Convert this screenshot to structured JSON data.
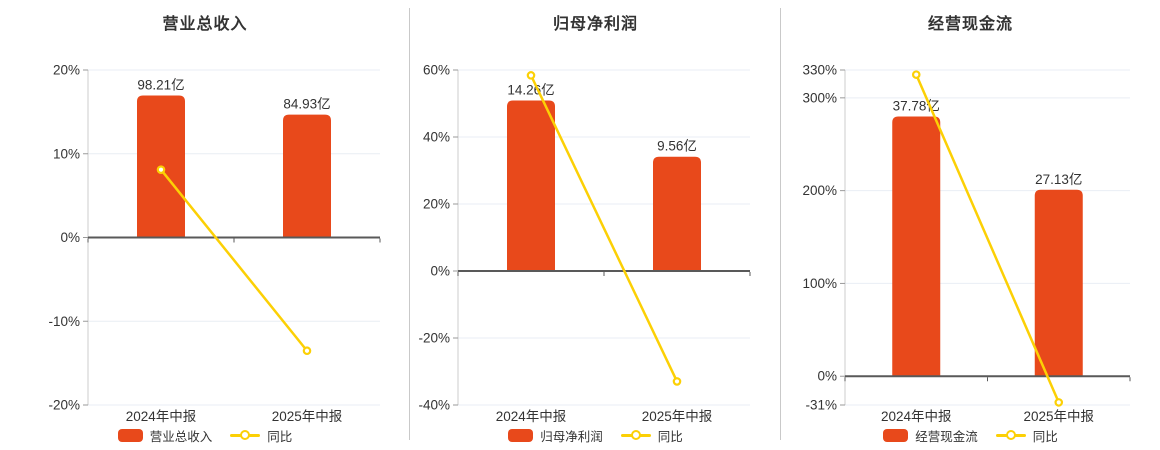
{
  "page": {
    "background": "#ffffff"
  },
  "style": {
    "bar_color": "#e8491b",
    "line_color": "#fcd005",
    "grid_color": "#e9eef4",
    "zero_axis_color": "#595959",
    "y_axis_color": "#cccccc",
    "tick_color": "#9a9a9a",
    "divider_color": "#c9c9c9",
    "text_color": "#333333"
  },
  "chart_data": [
    {
      "type": "bar",
      "title": "营业总收入",
      "categories": [
        "2024年中报",
        "2025年中报"
      ],
      "series": [
        {
          "name": "营业总收入",
          "type": "bar",
          "unit": "亿",
          "values": [
            98.21,
            84.93
          ],
          "labels": [
            "98.21亿",
            "84.93亿"
          ],
          "color": "#e8491b"
        },
        {
          "name": "同比",
          "type": "line",
          "unit": "%",
          "values": [
            8.1,
            -13.52
          ],
          "color": "#fcd005"
        }
      ],
      "y_axis": {
        "min": -20,
        "max": 20,
        "ticks": [
          {
            "v": 20,
            "label": "20%"
          },
          {
            "v": 10,
            "label": "10%"
          },
          {
            "v": 0,
            "label": "0%"
          },
          {
            "v": -10,
            "label": "-10%"
          },
          {
            "v": -20,
            "label": "-20%"
          }
        ]
      },
      "legend_position": "bottom",
      "grid": true
    },
    {
      "type": "bar",
      "title": "归母净利润",
      "categories": [
        "2024年中报",
        "2025年中报"
      ],
      "series": [
        {
          "name": "归母净利润",
          "type": "bar",
          "unit": "亿",
          "values": [
            14.26,
            9.56
          ],
          "labels": [
            "14.26亿",
            "9.56亿"
          ],
          "color": "#e8491b"
        },
        {
          "name": "同比",
          "type": "line",
          "unit": "%",
          "values": [
            58.4,
            -32.96
          ],
          "color": "#fcd005"
        }
      ],
      "y_axis": {
        "min": -40,
        "max": 60,
        "ticks": [
          {
            "v": 60,
            "label": "60%"
          },
          {
            "v": 40,
            "label": "40%"
          },
          {
            "v": 20,
            "label": "20%"
          },
          {
            "v": 0,
            "label": "0%"
          },
          {
            "v": -20,
            "label": "-20%"
          },
          {
            "v": -40,
            "label": "-40%"
          }
        ]
      },
      "legend_position": "bottom",
      "grid": true
    },
    {
      "type": "bar",
      "title": "经营现金流",
      "categories": [
        "2024年中报",
        "2025年中报"
      ],
      "series": [
        {
          "name": "经营现金流",
          "type": "bar",
          "unit": "亿",
          "values": [
            37.78,
            27.13
          ],
          "labels": [
            "37.78亿",
            "27.13亿"
          ],
          "color": "#e8491b"
        },
        {
          "name": "同比",
          "type": "line",
          "unit": "%",
          "values": [
            325,
            -28.19
          ],
          "color": "#fcd005"
        }
      ],
      "y_axis": {
        "min": -31,
        "max": 330,
        "ticks": [
          {
            "v": 330,
            "label": "330%"
          },
          {
            "v": 300,
            "label": "300%"
          },
          {
            "v": 200,
            "label": "200%"
          },
          {
            "v": 100,
            "label": "100%"
          },
          {
            "v": 0,
            "label": "0%"
          },
          {
            "v": -31,
            "label": "-31%"
          }
        ]
      },
      "legend_position": "bottom",
      "grid": true
    }
  ]
}
